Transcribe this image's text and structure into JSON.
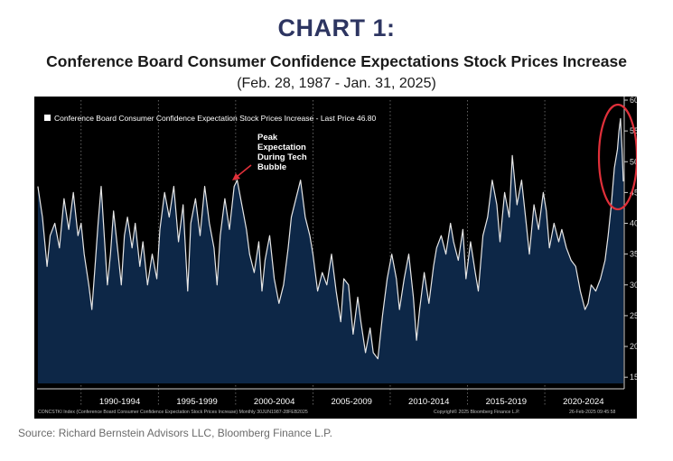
{
  "header": {
    "heading": "CHART 1:",
    "title": "Conference Board Consumer Confidence Expectations Stock Prices Increase",
    "subtitle": "(Feb. 28, 1987 - Jan. 31, 2025)"
  },
  "source": "Source: Richard Bernstein Advisors LLC, Bloomberg Finance L.P.",
  "colors": {
    "background": "#000000",
    "fill": "#0d2747",
    "line": "#e6e6e6",
    "annotation": "#e0303a",
    "grid": "#7a7a7a",
    "text": "#ffffff"
  },
  "chart_data": {
    "type": "area",
    "legend": "Conference Board Consumer Confidence Expectation Stock Prices Increase - Last Price 46.80",
    "x_tick_labels": [
      "1990-1994",
      "1995-1999",
      "2000-2004",
      "2005-2009",
      "2010-2014",
      "2015-2019",
      "2020-2024"
    ],
    "y_ticks": [
      15,
      20,
      25,
      30,
      35,
      40,
      45,
      50,
      55,
      60
    ],
    "ylim": [
      14,
      60
    ],
    "xlim": [
      1987.15,
      2025.08
    ],
    "grid": "vertical dotted at period boundaries",
    "y_axis_position": "right",
    "annotation": {
      "text_lines": [
        "Peak",
        "Expectation",
        "During Tech",
        "Bubble"
      ],
      "points_to": {
        "x": 2000.0,
        "y": 48
      }
    },
    "highlight": {
      "shape": "ellipse",
      "around_x": 2024.8,
      "around_y": 50
    },
    "footer_left": "CONCSTKI Index (Conference Board Consumer Confidence Expectation Stock Prices Increase) Monthly 30JUN1987-28FEB2025",
    "footer_right": "Copyright© 2025 Bloomberg Finance L.P.",
    "footer_date": "26-Feb-2025 09:45:58",
    "series": [
      {
        "name": "Conference Board Consumer Confidence Expectation Stock Prices Increase",
        "points": [
          [
            1987.2,
            46
          ],
          [
            1987.5,
            41
          ],
          [
            1987.8,
            33
          ],
          [
            1988.0,
            38
          ],
          [
            1988.3,
            40
          ],
          [
            1988.6,
            36
          ],
          [
            1988.9,
            44
          ],
          [
            1989.2,
            39
          ],
          [
            1989.5,
            45
          ],
          [
            1989.8,
            38
          ],
          [
            1990.0,
            40
          ],
          [
            1990.2,
            35
          ],
          [
            1990.5,
            30
          ],
          [
            1990.7,
            26
          ],
          [
            1990.9,
            33
          ],
          [
            1991.1,
            40
          ],
          [
            1991.3,
            46
          ],
          [
            1991.5,
            38
          ],
          [
            1991.7,
            30
          ],
          [
            1991.9,
            35
          ],
          [
            1992.1,
            42
          ],
          [
            1992.4,
            35
          ],
          [
            1992.6,
            30
          ],
          [
            1992.8,
            38
          ],
          [
            1993.0,
            41
          ],
          [
            1993.3,
            36
          ],
          [
            1993.5,
            40
          ],
          [
            1993.8,
            33
          ],
          [
            1994.0,
            37
          ],
          [
            1994.3,
            30
          ],
          [
            1994.6,
            35
          ],
          [
            1994.9,
            31
          ],
          [
            1995.1,
            39
          ],
          [
            1995.4,
            45
          ],
          [
            1995.7,
            41
          ],
          [
            1996.0,
            46
          ],
          [
            1996.3,
            37
          ],
          [
            1996.6,
            43
          ],
          [
            1996.9,
            29
          ],
          [
            1997.1,
            40
          ],
          [
            1997.4,
            44
          ],
          [
            1997.7,
            38
          ],
          [
            1998.0,
            46
          ],
          [
            1998.3,
            40
          ],
          [
            1998.6,
            36
          ],
          [
            1998.8,
            30
          ],
          [
            1999.0,
            38
          ],
          [
            1999.3,
            44
          ],
          [
            1999.6,
            39
          ],
          [
            1999.9,
            46
          ],
          [
            2000.1,
            47
          ],
          [
            2000.4,
            43
          ],
          [
            2000.7,
            39
          ],
          [
            2000.9,
            35
          ],
          [
            2001.2,
            32
          ],
          [
            2001.5,
            37
          ],
          [
            2001.7,
            29
          ],
          [
            2001.9,
            34
          ],
          [
            2002.2,
            38
          ],
          [
            2002.5,
            31
          ],
          [
            2002.8,
            27
          ],
          [
            2003.1,
            30
          ],
          [
            2003.4,
            36
          ],
          [
            2003.6,
            41
          ],
          [
            2003.9,
            44
          ],
          [
            2004.2,
            47
          ],
          [
            2004.5,
            41
          ],
          [
            2004.8,
            38
          ],
          [
            2005.0,
            35
          ],
          [
            2005.3,
            29
          ],
          [
            2005.6,
            32
          ],
          [
            2005.9,
            30
          ],
          [
            2006.2,
            35
          ],
          [
            2006.5,
            29
          ],
          [
            2006.8,
            24
          ],
          [
            2007.0,
            31
          ],
          [
            2007.3,
            30
          ],
          [
            2007.6,
            22
          ],
          [
            2007.9,
            28
          ],
          [
            2008.1,
            24
          ],
          [
            2008.4,
            19
          ],
          [
            2008.7,
            23
          ],
          [
            2008.9,
            19
          ],
          [
            2009.2,
            18
          ],
          [
            2009.5,
            25
          ],
          [
            2009.8,
            31
          ],
          [
            2010.1,
            35
          ],
          [
            2010.4,
            31
          ],
          [
            2010.6,
            26
          ],
          [
            2010.9,
            31
          ],
          [
            2011.2,
            35
          ],
          [
            2011.5,
            28
          ],
          [
            2011.7,
            21
          ],
          [
            2011.9,
            26
          ],
          [
            2012.2,
            32
          ],
          [
            2012.5,
            27
          ],
          [
            2012.8,
            33
          ],
          [
            2013.0,
            36
          ],
          [
            2013.3,
            38
          ],
          [
            2013.6,
            35
          ],
          [
            2013.9,
            40
          ],
          [
            2014.1,
            37
          ],
          [
            2014.4,
            34
          ],
          [
            2014.7,
            39
          ],
          [
            2014.9,
            31
          ],
          [
            2015.2,
            37
          ],
          [
            2015.5,
            32
          ],
          [
            2015.7,
            29
          ],
          [
            2016.0,
            38
          ],
          [
            2016.3,
            41
          ],
          [
            2016.6,
            47
          ],
          [
            2016.9,
            43
          ],
          [
            2017.1,
            37
          ],
          [
            2017.4,
            45
          ],
          [
            2017.7,
            41
          ],
          [
            2017.9,
            51
          ],
          [
            2018.2,
            43
          ],
          [
            2018.5,
            47
          ],
          [
            2018.8,
            40
          ],
          [
            2019.0,
            35
          ],
          [
            2019.3,
            43
          ],
          [
            2019.6,
            39
          ],
          [
            2019.9,
            45
          ],
          [
            2020.1,
            42
          ],
          [
            2020.3,
            36
          ],
          [
            2020.6,
            40
          ],
          [
            2020.9,
            37
          ],
          [
            2021.1,
            39
          ],
          [
            2021.4,
            36
          ],
          [
            2021.7,
            34
          ],
          [
            2022.0,
            33
          ],
          [
            2022.3,
            29
          ],
          [
            2022.6,
            26
          ],
          [
            2022.8,
            27
          ],
          [
            2023.0,
            30
          ],
          [
            2023.3,
            29
          ],
          [
            2023.6,
            31
          ],
          [
            2023.9,
            34
          ],
          [
            2024.1,
            38
          ],
          [
            2024.3,
            43
          ],
          [
            2024.5,
            49
          ],
          [
            2024.7,
            52
          ],
          [
            2024.8,
            55
          ],
          [
            2024.9,
            57
          ],
          [
            2025.0,
            52
          ],
          [
            2025.08,
            46.8
          ]
        ]
      }
    ]
  }
}
